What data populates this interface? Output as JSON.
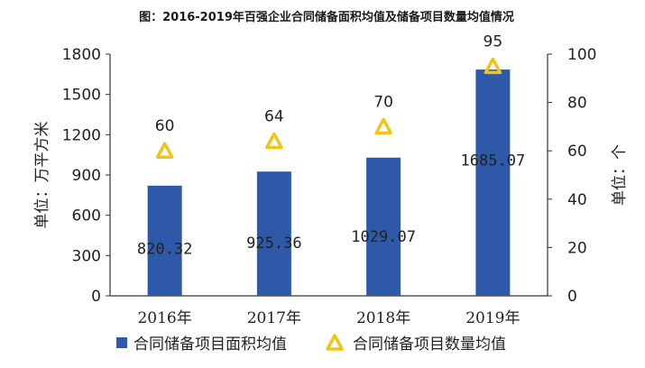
{
  "chart_data": {
    "type": "bar",
    "title": "图：2016-2019年百强企业合同储备面积均值及储备项目数量均值情况",
    "categories": [
      "2016年",
      "2017年",
      "2018年",
      "2019年"
    ],
    "series": [
      {
        "name": "合同储备项目面积均值",
        "kind": "bar",
        "axis": "left",
        "color": "#2e59a8",
        "values": [
          820.32,
          925.36,
          1029.07,
          1685.07
        ],
        "labels": [
          "820.32",
          "925.36",
          "1029.07",
          "1685.07"
        ]
      },
      {
        "name": "合同储备项目数量均值",
        "kind": "triangle-marker",
        "axis": "right",
        "color": "#f0c419",
        "values": [
          60,
          64,
          70,
          95
        ],
        "labels": [
          "60",
          "64",
          "70",
          "95"
        ]
      }
    ],
    "ylabel_left": "单位：万平方米",
    "ylabel_right": "单位：个",
    "ylim_left": [
      0,
      1800
    ],
    "yticks_left": [
      "0",
      "300",
      "600",
      "900",
      "1200",
      "1500",
      "1800"
    ],
    "ylim_right": [
      0,
      100
    ],
    "yticks_right": [
      "0",
      "20",
      "40",
      "60",
      "80",
      "100"
    ],
    "grid": false,
    "legend_position": "bottom"
  }
}
